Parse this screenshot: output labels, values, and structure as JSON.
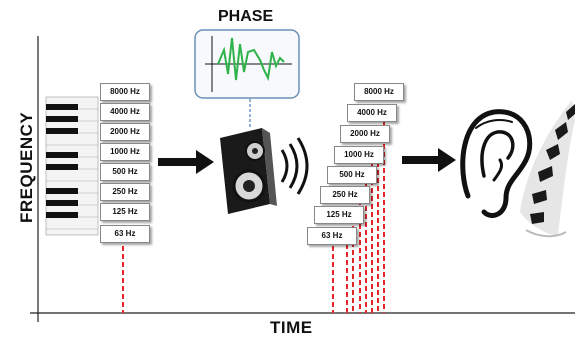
{
  "labels": {
    "y_axis": "FREQUENCY",
    "x_axis": "TIME",
    "phase": "PHASE"
  },
  "input_bands": [
    "8000 Hz",
    "4000 Hz",
    "2000 Hz",
    "1000 Hz",
    "500 Hz",
    "250 Hz",
    "125 Hz",
    "63 Hz"
  ],
  "output_bands": [
    "8000 Hz",
    "4000 Hz",
    "2000 Hz",
    "1000 Hz",
    "500 Hz",
    "250 Hz",
    "125 Hz",
    "63 Hz"
  ],
  "colors": {
    "dashed_line": "#e8262a",
    "phase_wave": "#2fb34a",
    "arrow": "#111111",
    "phase_box_border": "#6c8fb8"
  },
  "icons": [
    "piano-keys-icon",
    "speaker-icon",
    "ear-icon",
    "piano-swirl-icon"
  ]
}
